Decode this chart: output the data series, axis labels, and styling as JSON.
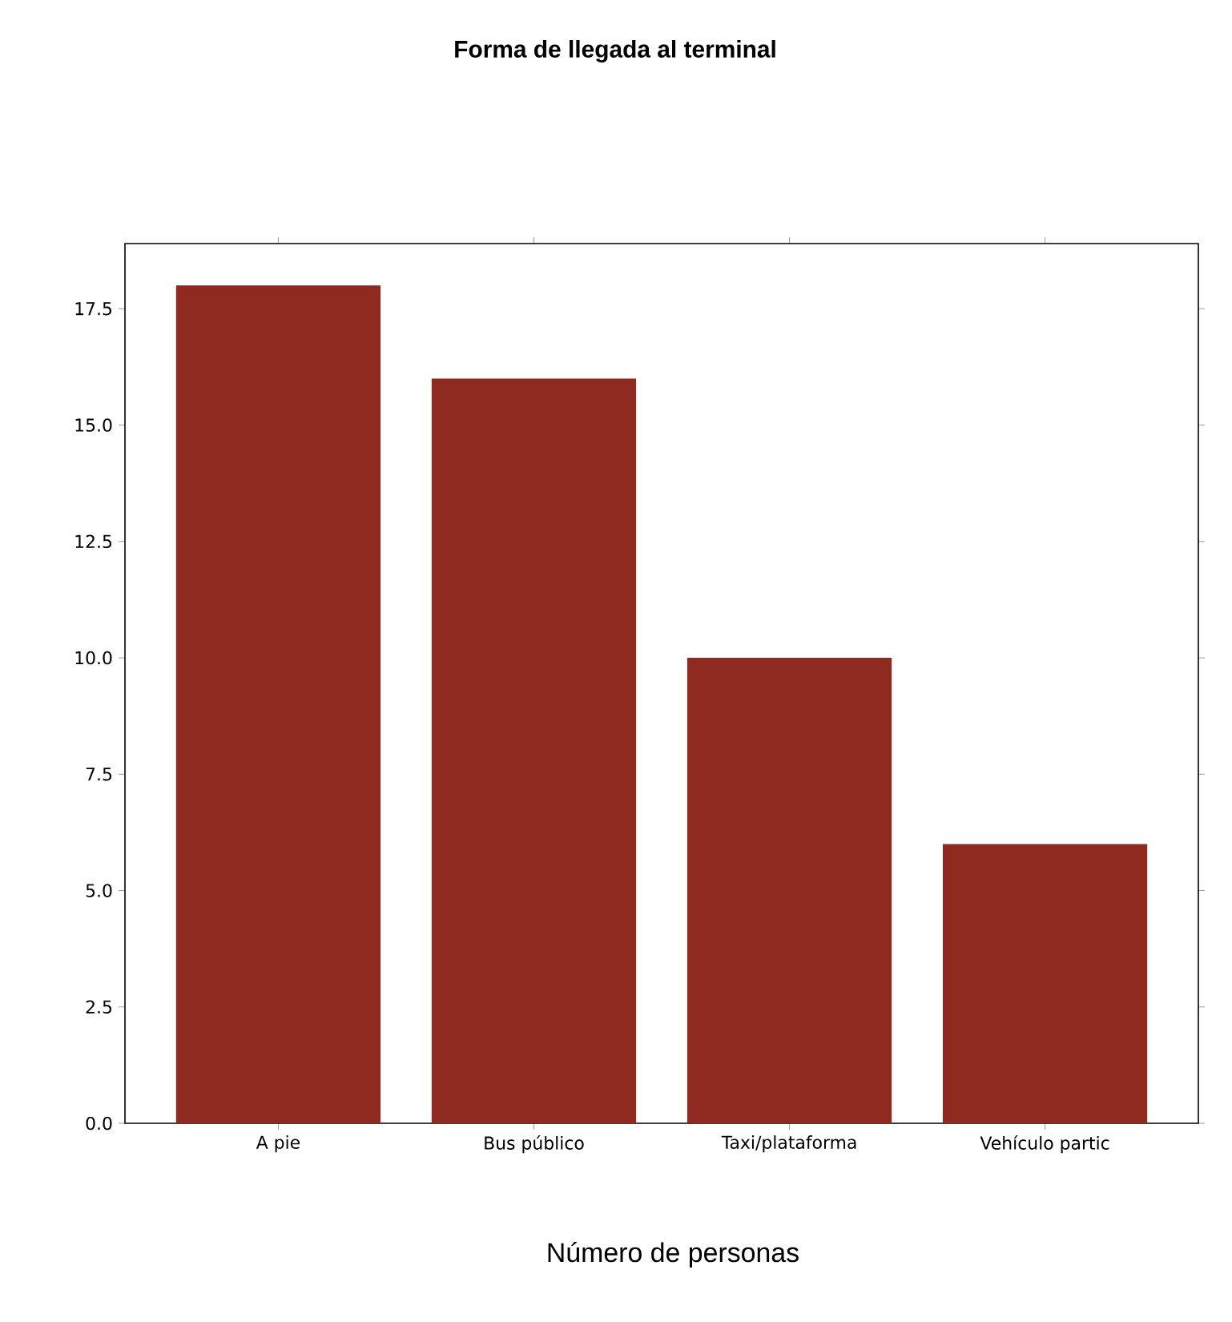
{
  "chart_data": {
    "type": "bar",
    "title": "Forma de llegada al terminal",
    "xlabel": "Número de personas",
    "categories": [
      "A pie",
      "Bus público",
      "Taxi/plataforma",
      "Vehículo partic"
    ],
    "values": [
      18,
      16,
      10,
      6
    ],
    "color": "#8e2a20",
    "ylim": [
      0,
      18.9
    ],
    "yticks": [
      {
        "value": 0,
        "label": "0.0"
      },
      {
        "value": 2.5,
        "label": "2.5"
      },
      {
        "value": 5,
        "label": "5.0"
      },
      {
        "value": 7.5,
        "label": "7.5"
      },
      {
        "value": 10,
        "label": "10.0"
      },
      {
        "value": 12.5,
        "label": "12.5"
      },
      {
        "value": 15,
        "label": "15.0"
      },
      {
        "value": 17.5,
        "label": "17.5"
      }
    ]
  }
}
